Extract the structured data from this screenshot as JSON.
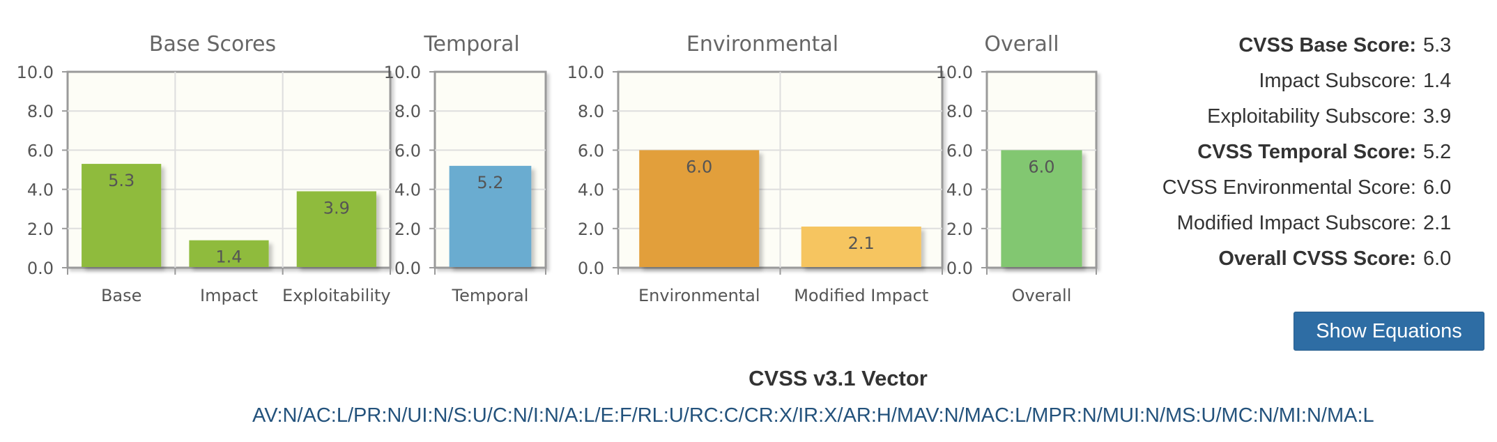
{
  "chart_data": [
    {
      "type": "bar",
      "title": "Base Scores",
      "categories": [
        "Base",
        "Impact",
        "Exploitability"
      ],
      "values": [
        5.3,
        1.4,
        3.9
      ],
      "value_labels": [
        "5.3",
        "1.4",
        "3.9"
      ],
      "colors": [
        "#8fbb3e",
        "#8fbb3e",
        "#8fbb3e"
      ],
      "yticks": [
        "0.0",
        "2.0",
        "4.0",
        "6.0",
        "8.0",
        "10.0"
      ],
      "ylim": [
        0,
        10
      ],
      "grid": true
    },
    {
      "type": "bar",
      "title": "Temporal",
      "categories": [
        "Temporal"
      ],
      "values": [
        5.2
      ],
      "value_labels": [
        "5.2"
      ],
      "colors": [
        "#6aacd0"
      ],
      "yticks": [
        "0.0",
        "2.0",
        "4.0",
        "6.0",
        "8.0",
        "10.0"
      ],
      "ylim": [
        0,
        10
      ],
      "grid": true
    },
    {
      "type": "bar",
      "title": "Environmental",
      "categories": [
        "Environmental",
        "Modified Impact"
      ],
      "values": [
        6.0,
        2.1
      ],
      "value_labels": [
        "6.0",
        "2.1"
      ],
      "colors": [
        "#e29f3a",
        "#f6c560"
      ],
      "yticks": [
        "0.0",
        "2.0",
        "4.0",
        "6.0",
        "8.0",
        "10.0"
      ],
      "ylim": [
        0,
        10
      ],
      "grid": true
    },
    {
      "type": "bar",
      "title": "Overall",
      "categories": [
        "Overall"
      ],
      "values": [
        6.0
      ],
      "value_labels": [
        "6.0"
      ],
      "colors": [
        "#82c771"
      ],
      "yticks": [
        "0.0",
        "2.0",
        "4.0",
        "6.0",
        "8.0",
        "10.0"
      ],
      "ylim": [
        0,
        10
      ],
      "grid": true
    }
  ],
  "scores": [
    {
      "label": "CVSS Base Score:",
      "value": "5.3",
      "bold": true
    },
    {
      "label": "Impact Subscore:",
      "value": "1.4",
      "bold": false
    },
    {
      "label": "Exploitability Subscore:",
      "value": "3.9",
      "bold": false
    },
    {
      "label": "CVSS Temporal Score:",
      "value": "5.2",
      "bold": true
    },
    {
      "label": "CVSS Environmental Score:",
      "value": "6.0",
      "bold": false
    },
    {
      "label": "Modified Impact Subscore:",
      "value": "2.1",
      "bold": false
    },
    {
      "label": "Overall CVSS Score:",
      "value": "6.0",
      "bold": true
    }
  ],
  "show_equations_label": "Show Equations",
  "vector": {
    "title": "CVSS v3.1 Vector",
    "string": "AV:N/AC:L/PR:N/UI:N/S:U/C:N/I:N/A:L/E:F/RL:U/RC:C/CR:X/IR:X/AR:H/MAV:N/MAC:L/MPR:N/MUI:N/MS:U/MC:N/MI:N/MA:L"
  },
  "colors": {
    "plot_background": "#fdfdf6",
    "frame": "#9a9a9a",
    "grid": "#dedede",
    "button": "#2e6da4",
    "link": "#23527c"
  }
}
